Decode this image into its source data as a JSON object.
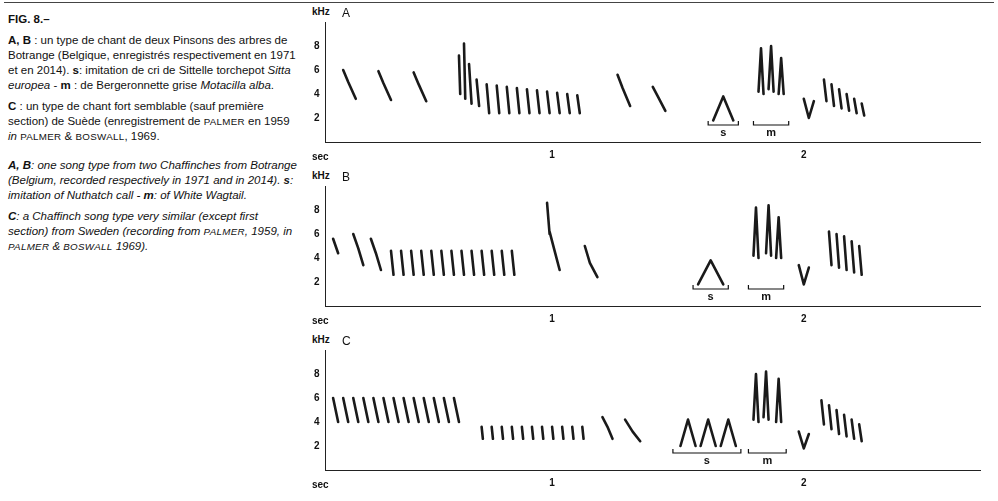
{
  "caption": {
    "fr": [
      [
        {
          "text": "FIG. 8.–",
          "b": true
        }
      ],
      [
        {
          "text": "A, B",
          "b": true
        },
        {
          "text": " : un type de chant de deux Pinsons des arbres de Botrange (Belgique, enregistrés respectivement en 1971 et en 2014). "
        },
        {
          "text": "s",
          "b": true
        },
        {
          "text": ": imitation de cri de Sittelle torchepot "
        },
        {
          "text": "Sitta europea",
          "i": true
        },
        {
          "text": " - "
        },
        {
          "text": "m",
          "b": true
        },
        {
          "text": " : de Bergeronnette grise "
        },
        {
          "text": "Motacilla alba",
          "i": true
        },
        {
          "text": "."
        }
      ],
      [
        {
          "text": "C",
          "b": true
        },
        {
          "text": " : un type de chant fort semblable (sauf première section) de Suède (enregistrement de "
        },
        {
          "text": "PALMER",
          "sc": true
        },
        {
          "text": " en 1959 "
        },
        {
          "text": "in",
          "i": true
        },
        {
          "text": " "
        },
        {
          "text": "PALMER",
          "sc": true
        },
        {
          "text": " & "
        },
        {
          "text": "BOSWALL",
          "sc": true
        },
        {
          "text": ", 1969."
        }
      ]
    ],
    "en": [
      [
        {
          "text": "A, B",
          "b": true
        },
        {
          "text": ": one song type from two Chaffinches from Botrange (Belgium, recorded respectively in 1971 and in 2014). "
        },
        {
          "text": "s",
          "b": true
        },
        {
          "text": ": imitation of Nuthatch call - "
        },
        {
          "text": "m",
          "b": true
        },
        {
          "text": ": of White Wagtail."
        }
      ],
      [
        {
          "text": "C",
          "b": true
        },
        {
          "text": ": a Chaffinch song type very similar (except first section) from Sweden (recording from "
        },
        {
          "text": "PALMER",
          "sc": true
        },
        {
          "text": ", 1959, in "
        },
        {
          "text": "PALMER",
          "sc": true
        },
        {
          "text": " & "
        },
        {
          "text": "BOSWALL",
          "sc": true
        },
        {
          "text": " 1969)."
        }
      ]
    ]
  },
  "chart_data": [
    {
      "type": "line",
      "title": "A",
      "y_label": "kHz",
      "x_label": "sec",
      "xlim": [
        0.1,
        2.7
      ],
      "xticks": [
        1,
        2
      ],
      "ylim": [
        0,
        10
      ],
      "yticks": [
        2,
        4,
        6,
        8
      ],
      "grid": false,
      "color": "#1a1a1a",
      "strokes": [
        [
          [
            0.17,
            6.0
          ],
          [
            0.19,
            5.0
          ],
          [
            0.22,
            3.6
          ]
        ],
        [
          [
            0.31,
            5.9
          ],
          [
            0.33,
            4.9
          ],
          [
            0.36,
            3.5
          ]
        ],
        [
          [
            0.45,
            5.8
          ],
          [
            0.47,
            4.8
          ],
          [
            0.5,
            3.4
          ]
        ],
        [
          [
            0.63,
            7.2
          ],
          [
            0.635,
            4.0
          ]
        ],
        [
          [
            0.65,
            8.2
          ],
          [
            0.655,
            3.6
          ]
        ],
        [
          [
            0.67,
            6.5
          ],
          [
            0.68,
            3.2
          ]
        ],
        [
          [
            0.7,
            5.2
          ],
          [
            0.71,
            3.0
          ]
        ],
        [
          [
            0.74,
            4.8
          ],
          [
            0.75,
            2.4
          ]
        ],
        [
          [
            0.78,
            4.7
          ],
          [
            0.79,
            2.4
          ]
        ],
        [
          [
            0.82,
            4.6
          ],
          [
            0.83,
            2.4
          ]
        ],
        [
          [
            0.86,
            4.5
          ],
          [
            0.87,
            2.4
          ]
        ],
        [
          [
            0.9,
            4.4
          ],
          [
            0.91,
            2.4
          ]
        ],
        [
          [
            0.94,
            4.3
          ],
          [
            0.95,
            2.4
          ]
        ],
        [
          [
            0.98,
            4.2
          ],
          [
            0.99,
            2.4
          ]
        ],
        [
          [
            1.02,
            4.1
          ],
          [
            1.03,
            2.4
          ]
        ],
        [
          [
            1.06,
            4.0
          ],
          [
            1.07,
            2.4
          ]
        ],
        [
          [
            1.1,
            3.9
          ],
          [
            1.11,
            2.4
          ]
        ],
        [
          [
            1.26,
            5.6
          ],
          [
            1.28,
            4.5
          ],
          [
            1.31,
            3.0
          ]
        ],
        [
          [
            1.4,
            4.6
          ],
          [
            1.42,
            3.8
          ],
          [
            1.45,
            2.6
          ]
        ],
        [
          [
            1.64,
            1.8
          ],
          [
            1.68,
            3.8
          ],
          [
            1.72,
            1.8
          ]
        ],
        [
          [
            1.82,
            4.2
          ],
          [
            1.83,
            7.8
          ],
          [
            1.84,
            4.0
          ]
        ],
        [
          [
            1.86,
            4.4
          ],
          [
            1.87,
            8.0
          ],
          [
            1.88,
            4.2
          ]
        ],
        [
          [
            1.9,
            4.0
          ],
          [
            1.91,
            7.0
          ],
          [
            1.92,
            4.0
          ]
        ],
        [
          [
            2.0,
            3.6
          ],
          [
            2.02,
            2.0
          ],
          [
            2.04,
            3.4
          ]
        ],
        [
          [
            2.08,
            5.2
          ],
          [
            2.09,
            3.4
          ]
        ],
        [
          [
            2.11,
            4.8
          ],
          [
            2.12,
            3.0
          ]
        ],
        [
          [
            2.14,
            4.4
          ],
          [
            2.15,
            2.8
          ]
        ],
        [
          [
            2.17,
            4.0
          ],
          [
            2.18,
            2.6
          ]
        ],
        [
          [
            2.2,
            3.6
          ],
          [
            2.21,
            2.4
          ]
        ],
        [
          [
            2.23,
            3.2
          ],
          [
            2.24,
            2.2
          ]
        ]
      ],
      "annotations": [
        {
          "label": "s",
          "x": [
            1.62,
            1.74
          ]
        },
        {
          "label": "m",
          "x": [
            1.8,
            1.94
          ]
        }
      ]
    },
    {
      "type": "line",
      "title": "B",
      "y_label": "kHz",
      "x_label": "sec",
      "xlim": [
        0.1,
        2.7
      ],
      "xticks": [
        1,
        2
      ],
      "ylim": [
        0,
        10
      ],
      "yticks": [
        2,
        4,
        6,
        8
      ],
      "grid": false,
      "color": "#1a1a1a",
      "strokes": [
        [
          [
            0.13,
            5.6
          ],
          [
            0.15,
            4.4
          ]
        ],
        [
          [
            0.21,
            6.0
          ],
          [
            0.23,
            4.8
          ],
          [
            0.25,
            3.4
          ]
        ],
        [
          [
            0.28,
            5.6
          ],
          [
            0.3,
            4.4
          ],
          [
            0.32,
            3.0
          ]
        ],
        [
          [
            0.36,
            4.6
          ],
          [
            0.37,
            2.6
          ]
        ],
        [
          [
            0.4,
            4.6
          ],
          [
            0.41,
            2.6
          ]
        ],
        [
          [
            0.44,
            4.6
          ],
          [
            0.45,
            2.6
          ]
        ],
        [
          [
            0.48,
            4.6
          ],
          [
            0.49,
            2.6
          ]
        ],
        [
          [
            0.52,
            4.6
          ],
          [
            0.53,
            2.6
          ]
        ],
        [
          [
            0.56,
            4.6
          ],
          [
            0.57,
            2.6
          ]
        ],
        [
          [
            0.6,
            4.6
          ],
          [
            0.61,
            2.6
          ]
        ],
        [
          [
            0.64,
            4.6
          ],
          [
            0.65,
            2.6
          ]
        ],
        [
          [
            0.68,
            4.6
          ],
          [
            0.69,
            2.6
          ]
        ],
        [
          [
            0.72,
            4.6
          ],
          [
            0.73,
            2.6
          ]
        ],
        [
          [
            0.76,
            4.6
          ],
          [
            0.77,
            2.6
          ]
        ],
        [
          [
            0.8,
            4.6
          ],
          [
            0.81,
            2.6
          ]
        ],
        [
          [
            0.84,
            4.6
          ],
          [
            0.85,
            2.6
          ]
        ],
        [
          [
            0.98,
            8.6
          ],
          [
            0.99,
            6.0
          ]
        ],
        [
          [
            0.99,
            6.2
          ],
          [
            1.01,
            4.6
          ],
          [
            1.03,
            3.0
          ]
        ],
        [
          [
            1.13,
            5.0
          ],
          [
            1.15,
            3.6
          ],
          [
            1.18,
            2.4
          ]
        ],
        [
          [
            1.58,
            1.8
          ],
          [
            1.63,
            3.8
          ],
          [
            1.68,
            1.8
          ]
        ],
        [
          [
            1.8,
            4.2
          ],
          [
            1.81,
            8.2
          ],
          [
            1.82,
            4.0
          ]
        ],
        [
          [
            1.85,
            4.4
          ],
          [
            1.86,
            8.4
          ],
          [
            1.87,
            4.2
          ]
        ],
        [
          [
            1.89,
            4.0
          ],
          [
            1.9,
            7.4
          ],
          [
            1.91,
            4.0
          ]
        ],
        [
          [
            1.98,
            3.4
          ],
          [
            2.0,
            1.8
          ],
          [
            2.02,
            3.2
          ]
        ],
        [
          [
            2.1,
            6.2
          ],
          [
            2.11,
            3.4
          ]
        ],
        [
          [
            2.13,
            6.0
          ],
          [
            2.14,
            3.2
          ]
        ],
        [
          [
            2.16,
            5.8
          ],
          [
            2.17,
            3.0
          ]
        ],
        [
          [
            2.19,
            5.4
          ],
          [
            2.2,
            2.8
          ]
        ],
        [
          [
            2.22,
            5.0
          ],
          [
            2.23,
            2.6
          ]
        ]
      ],
      "annotations": [
        {
          "label": "s",
          "x": [
            1.56,
            1.7
          ]
        },
        {
          "label": "m",
          "x": [
            1.78,
            1.92
          ]
        }
      ]
    },
    {
      "type": "line",
      "title": "C",
      "y_label": "kHz",
      "x_label": "sec",
      "xlim": [
        0.1,
        2.7
      ],
      "xticks": [
        1,
        2
      ],
      "ylim": [
        0,
        10
      ],
      "yticks": [
        2,
        4,
        6,
        8
      ],
      "grid": false,
      "color": "#1a1a1a",
      "strokes": [
        [
          [
            0.13,
            6.0
          ],
          [
            0.15,
            4.0
          ]
        ],
        [
          [
            0.17,
            6.0
          ],
          [
            0.19,
            4.0
          ]
        ],
        [
          [
            0.21,
            6.0
          ],
          [
            0.23,
            4.0
          ]
        ],
        [
          [
            0.25,
            6.0
          ],
          [
            0.27,
            4.0
          ]
        ],
        [
          [
            0.29,
            6.0
          ],
          [
            0.31,
            4.0
          ]
        ],
        [
          [
            0.33,
            6.0
          ],
          [
            0.35,
            4.0
          ]
        ],
        [
          [
            0.37,
            6.0
          ],
          [
            0.39,
            4.0
          ]
        ],
        [
          [
            0.41,
            6.0
          ],
          [
            0.43,
            4.0
          ]
        ],
        [
          [
            0.45,
            6.0
          ],
          [
            0.47,
            4.0
          ]
        ],
        [
          [
            0.49,
            6.0
          ],
          [
            0.51,
            4.0
          ]
        ],
        [
          [
            0.53,
            6.0
          ],
          [
            0.55,
            4.0
          ]
        ],
        [
          [
            0.57,
            6.0
          ],
          [
            0.59,
            4.0
          ]
        ],
        [
          [
            0.61,
            6.0
          ],
          [
            0.63,
            4.0
          ]
        ],
        [
          [
            0.72,
            3.6
          ],
          [
            0.725,
            2.6
          ]
        ],
        [
          [
            0.76,
            3.6
          ],
          [
            0.765,
            2.6
          ]
        ],
        [
          [
            0.8,
            3.6
          ],
          [
            0.805,
            2.6
          ]
        ],
        [
          [
            0.84,
            3.6
          ],
          [
            0.845,
            2.6
          ]
        ],
        [
          [
            0.88,
            3.6
          ],
          [
            0.885,
            2.6
          ]
        ],
        [
          [
            0.92,
            3.6
          ],
          [
            0.925,
            2.6
          ]
        ],
        [
          [
            0.96,
            3.6
          ],
          [
            0.965,
            2.6
          ]
        ],
        [
          [
            1.0,
            3.6
          ],
          [
            1.005,
            2.6
          ]
        ],
        [
          [
            1.04,
            3.6
          ],
          [
            1.045,
            2.6
          ]
        ],
        [
          [
            1.08,
            3.6
          ],
          [
            1.085,
            2.6
          ]
        ],
        [
          [
            1.12,
            3.6
          ],
          [
            1.125,
            2.6
          ]
        ],
        [
          [
            1.2,
            4.4
          ],
          [
            1.22,
            3.6
          ],
          [
            1.24,
            2.6
          ]
        ],
        [
          [
            1.29,
            4.2
          ],
          [
            1.32,
            3.2
          ],
          [
            1.35,
            2.4
          ]
        ],
        [
          [
            1.51,
            2.0
          ],
          [
            1.54,
            4.2
          ],
          [
            1.57,
            2.0
          ]
        ],
        [
          [
            1.59,
            2.0
          ],
          [
            1.62,
            4.2
          ],
          [
            1.65,
            2.0
          ]
        ],
        [
          [
            1.67,
            2.0
          ],
          [
            1.7,
            4.2
          ],
          [
            1.73,
            2.0
          ]
        ],
        [
          [
            1.8,
            4.2
          ],
          [
            1.81,
            8.0
          ],
          [
            1.82,
            4.0
          ]
        ],
        [
          [
            1.84,
            4.4
          ],
          [
            1.85,
            8.2
          ],
          [
            1.86,
            4.2
          ]
        ],
        [
          [
            1.89,
            4.0
          ],
          [
            1.9,
            7.6
          ],
          [
            1.91,
            4.0
          ]
        ],
        [
          [
            1.98,
            3.2
          ],
          [
            2.0,
            1.8
          ],
          [
            2.02,
            3.0
          ]
        ],
        [
          [
            2.07,
            5.8
          ],
          [
            2.08,
            3.8
          ]
        ],
        [
          [
            2.1,
            5.4
          ],
          [
            2.11,
            3.4
          ]
        ],
        [
          [
            2.13,
            5.0
          ],
          [
            2.14,
            3.0
          ]
        ],
        [
          [
            2.16,
            4.6
          ],
          [
            2.17,
            2.8
          ]
        ],
        [
          [
            2.19,
            4.2
          ],
          [
            2.2,
            2.6
          ]
        ],
        [
          [
            2.22,
            3.8
          ],
          [
            2.23,
            2.4
          ]
        ]
      ],
      "annotations": [
        {
          "label": "s",
          "x": [
            1.48,
            1.75
          ]
        },
        {
          "label": "m",
          "x": [
            1.78,
            1.93
          ]
        }
      ]
    }
  ]
}
